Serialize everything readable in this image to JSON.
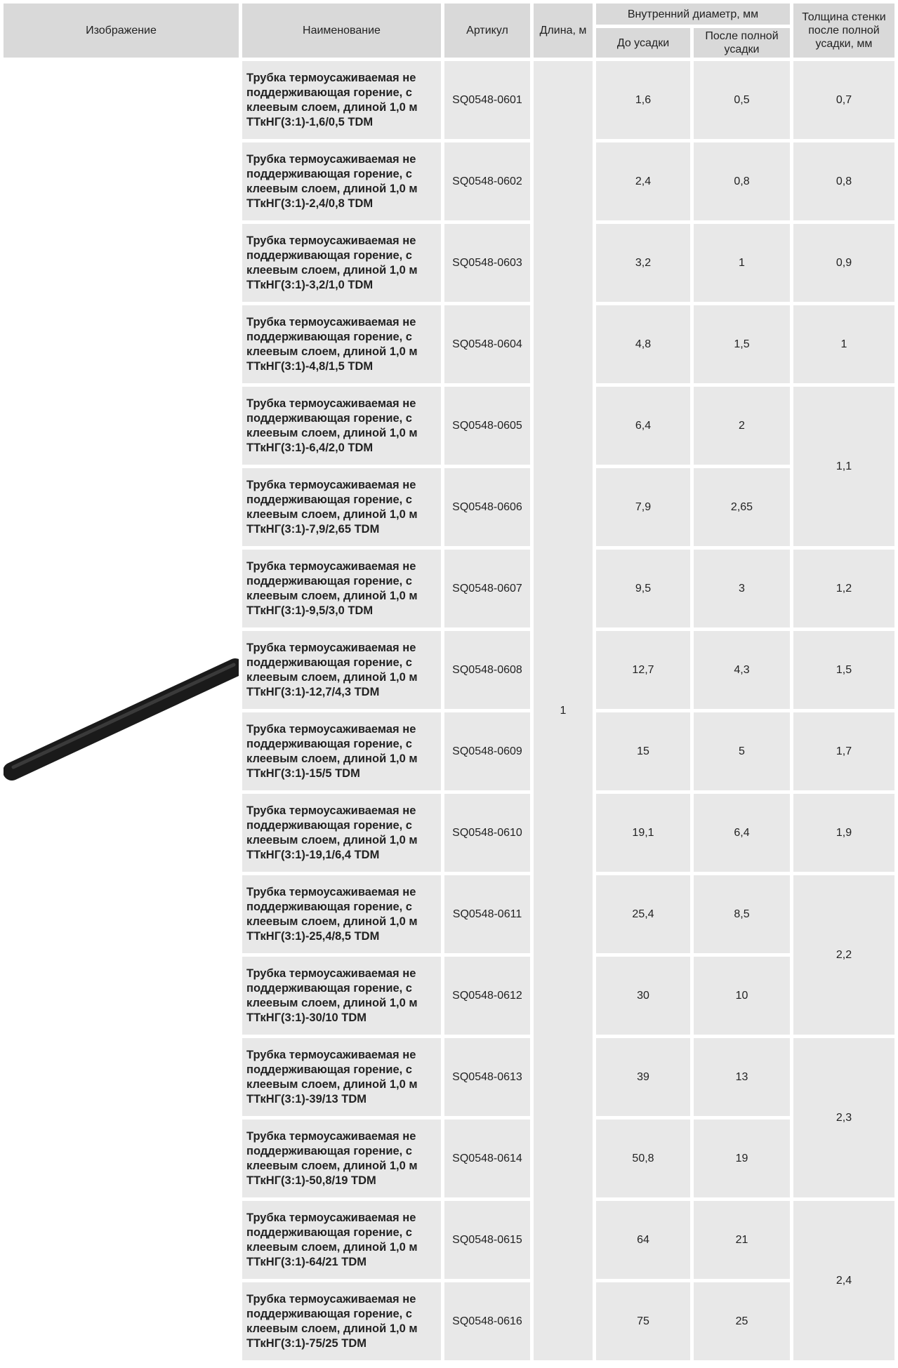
{
  "table": {
    "header": {
      "image": "Изображение",
      "name": "Наименование",
      "article": "Артикул",
      "length": "Длина, м",
      "inner_diameter": "Внутренний диаметр, мм",
      "before": "До усадки",
      "after": "После полной усадки",
      "thickness": "Толщина стенки после полной усадки, мм"
    },
    "length_value": "1",
    "rows": [
      {
        "name": "Трубка термоусаживаемая не поддерживающая горение, с клеевым слоем, длиной 1,0 м ТТкНГ(3:1)-1,6/0,5 TDM",
        "article": "SQ0548-0601",
        "before": "1,6",
        "after": "0,5",
        "thickness": "0,7"
      },
      {
        "name": "Трубка термоусаживаемая не поддерживающая горение, с клеевым слоем, длиной 1,0 м ТТкНГ(3:1)-2,4/0,8 TDM",
        "article": "SQ0548-0602",
        "before": "2,4",
        "after": "0,8",
        "thickness": "0,8"
      },
      {
        "name": "Трубка термоусаживаемая не поддерживающая горение, с клеевым слоем, длиной 1,0 м ТТкНГ(3:1)-3,2/1,0 TDM",
        "article": "SQ0548-0603",
        "before": "3,2",
        "after": "1",
        "thickness": "0,9"
      },
      {
        "name": "Трубка термоусаживаемая не поддерживающая горение, с клеевым слоем, длиной 1,0 м ТТкНГ(3:1)-4,8/1,5 TDM",
        "article": "SQ0548-0604",
        "before": "4,8",
        "after": "1,5",
        "thickness": "1"
      },
      {
        "name": "Трубка термоусаживаемая не поддерживающая горение, с клеевым слоем, длиной 1,0 м ТТкНГ(3:1)-6,4/2,0 TDM",
        "article": "SQ0548-0605",
        "before": "6,4",
        "after": "2",
        "thickness": "1,1"
      },
      {
        "name": "Трубка термоусаживаемая не поддерживающая горение, с клеевым слоем, длиной 1,0 м ТТкНГ(3:1)-7,9/2,65 TDM",
        "article": "SQ0548-0606",
        "before": "7,9",
        "after": "2,65"
      },
      {
        "name": "Трубка термоусаживаемая не поддерживающая горение, с клеевым слоем, длиной 1,0 м ТТкНГ(3:1)-9,5/3,0 TDM",
        "article": "SQ0548-0607",
        "before": "9,5",
        "after": "3",
        "thickness": "1,2"
      },
      {
        "name": "Трубка термоусаживаемая не поддерживающая горение, с клеевым слоем, длиной 1,0 м ТТкНГ(3:1)-12,7/4,3 TDM",
        "article": "SQ0548-0608",
        "before": "12,7",
        "after": "4,3",
        "thickness": "1,5"
      },
      {
        "name": "Трубка термоусаживаемая не поддерживающая горение, с клеевым слоем, длиной 1,0 м ТТкНГ(3:1)-15/5 TDM",
        "article": "SQ0548-0609",
        "before": "15",
        "after": "5",
        "thickness": "1,7"
      },
      {
        "name": "Трубка термоусаживаемая не поддерживающая горение, с клеевым слоем, длиной 1,0 м ТТкНГ(3:1)-19,1/6,4 TDM",
        "article": "SQ0548-0610",
        "before": "19,1",
        "after": "6,4",
        "thickness": "1,9"
      },
      {
        "name": "Трубка термоусаживаемая не поддерживающая горение, с клеевым слоем, длиной 1,0 м ТТкНГ(3:1)-25,4/8,5 TDM",
        "article": "SQ0548-0611",
        "before": "25,4",
        "after": "8,5",
        "thickness": "2,2"
      },
      {
        "name": "Трубка термоусаживаемая не поддерживающая горение, с клеевым слоем, длиной 1,0 м ТТкНГ(3:1)-30/10 TDM",
        "article": "SQ0548-0612",
        "before": "30",
        "after": "10"
      },
      {
        "name": "Трубка термоусаживаемая не поддерживающая горение, с клеевым слоем, длиной 1,0 м ТТкНГ(3:1)-39/13 TDM",
        "article": "SQ0548-0613",
        "before": "39",
        "after": "13",
        "thickness": "2,3"
      },
      {
        "name": "Трубка термоусаживаемая не поддерживающая горение, с клеевым слоем, длиной 1,0 м ТТкНГ(3:1)-50,8/19 TDM",
        "article": "SQ0548-0614",
        "before": "50,8",
        "after": "19"
      },
      {
        "name": "Трубка термоусаживаемая не поддерживающая горение, с клеевым слоем, длиной 1,0 м ТТкНГ(3:1)-64/21 TDM",
        "article": "SQ0548-0615",
        "before": "64",
        "after": "21",
        "thickness": "2,4"
      },
      {
        "name": "Трубка термоусаживаемая не поддерживающая горение, с клеевым слоем, длиной 1,0 м ТТкНГ(3:1)-75/25 TDM",
        "article": "SQ0548-0616",
        "before": "75",
        "after": "25"
      }
    ]
  }
}
